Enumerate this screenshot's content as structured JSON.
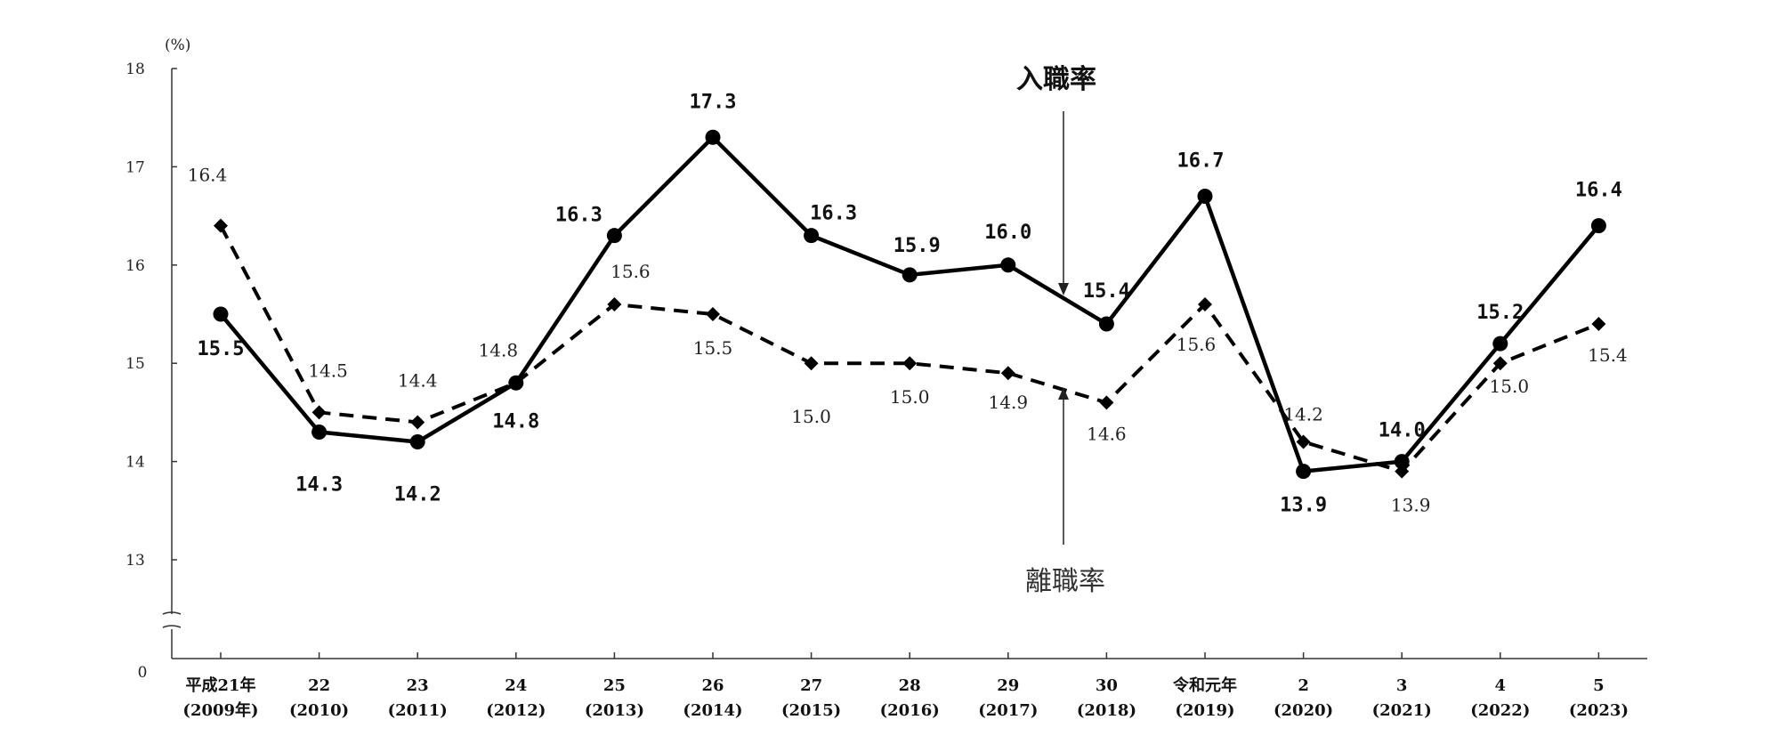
{
  "chart_data": {
    "type": "line",
    "unit": "(%)",
    "categories": [
      [
        "平成21年",
        "(2009年)"
      ],
      [
        "22",
        "(2010)"
      ],
      [
        "23",
        "(2011)"
      ],
      [
        "24",
        "(2012)"
      ],
      [
        "25",
        "(2013)"
      ],
      [
        "26",
        "(2014)"
      ],
      [
        "27",
        "(2015)"
      ],
      [
        "28",
        "(2016)"
      ],
      [
        "29",
        "(2017)"
      ],
      [
        "30",
        "(2018)"
      ],
      [
        "令和元年",
        "(2019)"
      ],
      [
        "2",
        "(2020)"
      ],
      [
        "3",
        "(2021)"
      ],
      [
        "4",
        "(2022)"
      ],
      [
        "5",
        "(2023)"
      ]
    ],
    "yticks": [
      "0",
      "13",
      "14",
      "15",
      "16",
      "17",
      "18"
    ],
    "ylim": [
      13,
      18
    ],
    "axis_break": true,
    "series": [
      {
        "name": "入職率",
        "style": "solid",
        "marker": "circle",
        "values": [
          15.5,
          14.3,
          14.2,
          14.8,
          16.3,
          17.3,
          16.3,
          15.9,
          16.0,
          15.4,
          16.7,
          13.9,
          14.0,
          15.2,
          16.4
        ],
        "labels": [
          "15.5",
          "14.3",
          "14.2",
          "14.8",
          "16.3",
          "17.3",
          "16.3",
          "15.9",
          "16.0",
          "15.4",
          "16.7",
          "13.9",
          "14.0",
          "15.2",
          "16.4"
        ]
      },
      {
        "name": "離職率",
        "style": "dashed",
        "marker": "diamond",
        "values": [
          16.4,
          14.5,
          14.4,
          14.8,
          15.6,
          15.5,
          15.0,
          15.0,
          14.9,
          14.6,
          15.6,
          14.2,
          13.9,
          15.0,
          15.4
        ],
        "labels": [
          "16.4",
          "14.5",
          "14.4",
          "14.8",
          "15.6",
          "15.5",
          "15.0",
          "15.0",
          "14.9",
          "14.6",
          "15.6",
          "14.2",
          "13.9",
          "15.0",
          "15.4"
        ]
      }
    ],
    "colors": {
      "line": "#000000",
      "text": "#111111",
      "axis": "#333333"
    }
  }
}
